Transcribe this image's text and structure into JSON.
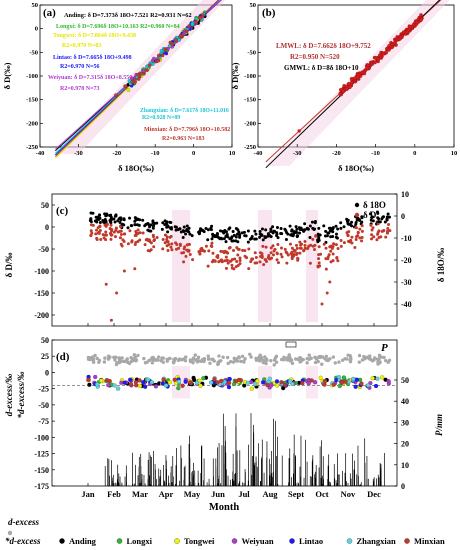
{
  "chart_data": [
    {
      "panel": "(a)",
      "type": "scatter",
      "xlabel": "δ 18O(‰)",
      "ylabel": "δ D(‰)",
      "xlim": [
        -40,
        10
      ],
      "ylim": [
        -250,
        50
      ],
      "xticks": [
        "-40",
        "-30",
        "-20",
        "-10",
        "0",
        "10"
      ],
      "yticks": [
        "50",
        "0",
        "-50",
        "-100",
        "-150",
        "-200",
        "-250"
      ],
      "annotations": [
        {
          "text": "Anding: δ D=7.373δ 18O+7.521 R2=0.931 N=62",
          "color": "#000000"
        },
        {
          "text": "Longxi: δ D=7.696δ 18O+10.163 R2=0.960 N=84",
          "color": "#2eb82e"
        },
        {
          "text": "Tongwei: δ D=7.864δ 18O+9.438",
          "color": "#e6e600"
        },
        {
          "text": "R2=0.970 N=83",
          "color": "#e6e600"
        },
        {
          "text": "Lintao: δ D=7.665δ 18O+9.498",
          "color": "#1a1aff"
        },
        {
          "text": "R2=0.970 N=56",
          "color": "#1a1aff"
        },
        {
          "text": "Weiyuan: δ D=7.315δ 18O+8.550",
          "color": "#b03ad0"
        },
        {
          "text": "R2=0.978 N=73",
          "color": "#b03ad0"
        },
        {
          "text": "Zhangxian: δ D=7.617δ 18O+11.016",
          "color": "#18c6d8"
        },
        {
          "text": "R2=0.928 N=89",
          "color": "#18c6d8"
        },
        {
          "text": "Minxian: δ D=7.796δ 18O+10.582",
          "color": "#c0392b"
        },
        {
          "text": "R2=0.963 N=183",
          "color": "#c0392b"
        }
      ],
      "series": [
        {
          "name": "Anding",
          "color": "#000000",
          "slope": 7.373,
          "intercept": 7.521
        },
        {
          "name": "Longxi",
          "color": "#2eb82e",
          "slope": 7.696,
          "intercept": 10.163
        },
        {
          "name": "Tongwei",
          "color": "#e6e600",
          "slope": 7.864,
          "intercept": 9.438
        },
        {
          "name": "Lintao",
          "color": "#1a1aff",
          "slope": 7.665,
          "intercept": 9.498
        },
        {
          "name": "Weiyuan",
          "color": "#b03ad0",
          "slope": 7.315,
          "intercept": 8.55
        },
        {
          "name": "Zhangxian",
          "color": "#18c6d8",
          "slope": 7.617,
          "intercept": 11.016
        },
        {
          "name": "Minxian",
          "color": "#c0392b",
          "slope": 7.796,
          "intercept": 10.582
        }
      ]
    },
    {
      "panel": "(b)",
      "type": "scatter",
      "xlabel": "δ 18O(‰)",
      "ylabel": "δ D(‰)",
      "xlim": [
        -40,
        10
      ],
      "ylim": [
        -250,
        50
      ],
      "xticks": [
        "-40",
        "-30",
        "-20",
        "-10",
        "0",
        "10"
      ],
      "yticks": [
        "50",
        "0",
        "-50",
        "-100",
        "-150",
        "-200",
        "-250"
      ],
      "annotations": [
        {
          "text": "LMWL: δ D=7.662δ 18O+9.752",
          "color": "#b03030"
        },
        {
          "text": "R2=0.950 N=520",
          "color": "#b03030"
        },
        {
          "text": "GMWL: δ D=8δ 18O+10",
          "color": "#000000"
        }
      ],
      "lines": [
        {
          "name": "LMWL",
          "color": "#c0392b",
          "slope": 7.662,
          "intercept": 9.752
        },
        {
          "name": "GMWL",
          "color": "#000000",
          "slope": 8,
          "intercept": 10
        }
      ]
    },
    {
      "panel": "(c)",
      "type": "scatter",
      "xcategories": [
        "Jan",
        "Feb",
        "Mar",
        "Apr",
        "May",
        "Jun",
        "Jul",
        "Aug",
        "Sept",
        "Oct",
        "Nov",
        "Dec"
      ],
      "ylabel_left": "δ D/‰",
      "ylabel_right": "δ 18O/‰",
      "ylim_left": [
        -225,
        75
      ],
      "ylim_right": [
        -50,
        10
      ],
      "yticks_left": [
        "50",
        "0",
        "-50",
        "-100",
        "-150",
        "-200"
      ],
      "yticks_right": [
        "10",
        "0",
        "-10",
        "-20",
        "-30",
        "-40"
      ],
      "legend": [
        {
          "label": "δ 18O",
          "color": "#000000"
        },
        {
          "label": "δ D",
          "color": "#c0392b"
        }
      ]
    },
    {
      "panel": "(d)",
      "type": "scatter+bar",
      "xlabel": "Month",
      "xcategories": [
        "Jan",
        "Feb",
        "Mar",
        "Apr",
        "May",
        "Jun",
        "Jul",
        "Aug",
        "Sept",
        "Oct",
        "Nov",
        "Dec"
      ],
      "ylabel_left_top": "d-excess/‰",
      "ylabel_left_bottom": "*d-excess/‰",
      "ylabel_right": "P/mm",
      "ylim_left": [
        -175,
        50
      ],
      "yticks_left": [
        "50",
        "25",
        "0",
        "-25",
        "-50",
        "-75",
        "-100",
        "-125",
        "-150",
        "-175"
      ],
      "ylim_right": [
        0,
        50
      ],
      "yticks_right": [
        "50",
        "40",
        "30",
        "20",
        "10",
        "0"
      ],
      "legend_corner": "P",
      "series": [
        {
          "name": "d-excess",
          "color": "#a8a8a8"
        },
        {
          "name": "Anding",
          "color": "#000000"
        },
        {
          "name": "Longxi",
          "color": "#2eb82e"
        },
        {
          "name": "Tongwei",
          "color": "#f2f200"
        },
        {
          "name": "Weiyuan",
          "color": "#b03ad0"
        },
        {
          "name": "Lintao",
          "color": "#1a1aff"
        },
        {
          "name": "Zhangxian",
          "color": "#5fd3e6"
        },
        {
          "name": "Minxian",
          "color": "#c0392b"
        }
      ]
    }
  ],
  "legend": {
    "dexcess_label": "d-excess",
    "star_label": "*d-excess",
    "stations": [
      {
        "label": "Anding",
        "color": "#000000"
      },
      {
        "label": "Longxi",
        "color": "#2eb82e"
      },
      {
        "label": "Tongwei",
        "color": "#f2f200"
      },
      {
        "label": "Weiyuan",
        "color": "#b03ad0"
      },
      {
        "label": "Lintao",
        "color": "#1a1aff"
      },
      {
        "label": "Zhangxian",
        "color": "#5fd3e6"
      },
      {
        "label": "Minxian",
        "color": "#c0392b"
      }
    ]
  },
  "colors": {
    "dexcess_gray": "#a8a8a8",
    "band_pink": "#f4d0e4",
    "deep_red": "#c0392b"
  }
}
